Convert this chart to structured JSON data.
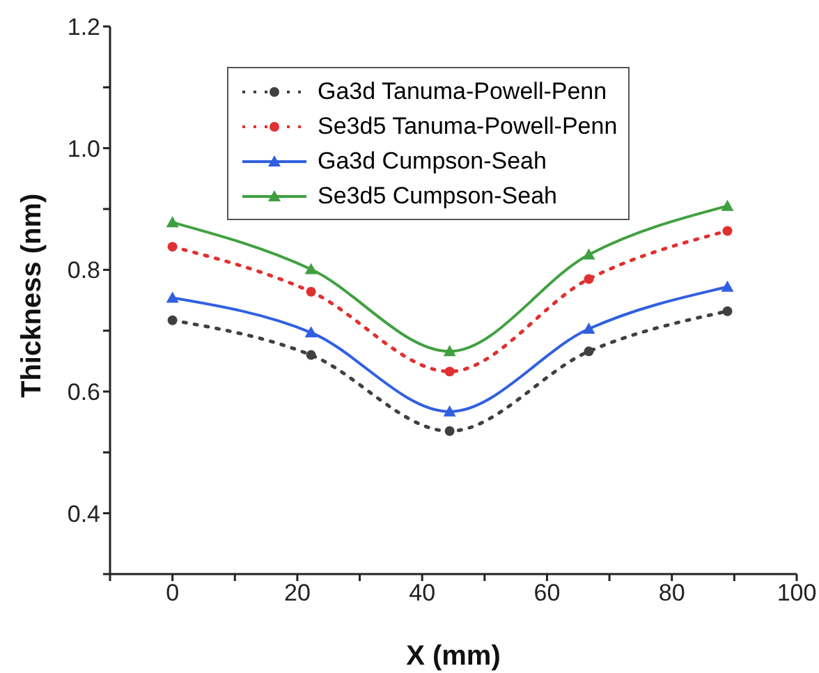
{
  "chart_data": {
    "type": "line",
    "xlabel": "X (mm)",
    "ylabel": "Thickness (nm)",
    "xlim": [
      -10,
      100
    ],
    "xticks": [
      {
        "value": -10,
        "label": null
      },
      0,
      {
        "value": 10,
        "label": null
      },
      20,
      {
        "value": 30,
        "label": null
      },
      40,
      {
        "value": 50,
        "label": null
      },
      60,
      {
        "value": 70,
        "label": null
      },
      80,
      {
        "value": 90,
        "label": null
      },
      100
    ],
    "ylim": [
      0.3,
      1.2
    ],
    "yticks": [
      {
        "value": 0.3,
        "label": null
      },
      {
        "value": 0.4,
        "label": "0.4"
      },
      {
        "value": 0.5,
        "label": null
      },
      {
        "value": 0.6,
        "label": "0.6"
      },
      {
        "value": 0.7,
        "label": null
      },
      {
        "value": 0.8,
        "label": "0.8"
      },
      {
        "value": 0.9,
        "label": null
      },
      {
        "value": 1.0,
        "label": "1.0"
      },
      {
        "value": 1.1,
        "label": null
      },
      {
        "value": 1.2,
        "label": "1.2"
      }
    ],
    "x": [
      0,
      22.2,
      44.4,
      66.7,
      88.9
    ],
    "series": [
      {
        "name": "Ga3d Tanuma-Powell-Penn",
        "color": "#404040",
        "line_style": "dotted",
        "marker": "circle",
        "values": [
          0.717,
          0.66,
          0.535,
          0.666,
          0.732
        ]
      },
      {
        "name": "Se3d5 Tanuma-Powell-Penn",
        "color": "#e03030",
        "line_style": "dotted",
        "marker": "circle",
        "values": [
          0.838,
          0.764,
          0.633,
          0.785,
          0.864
        ]
      },
      {
        "name": "Ga3d Cumpson-Seah",
        "color": "#3060e0",
        "line_style": "solid",
        "marker": "triangle",
        "values": [
          0.754,
          0.697,
          0.567,
          0.703,
          0.772
        ]
      },
      {
        "name": "Se3d5 Cumpson-Seah",
        "color": "#40a040",
        "line_style": "solid",
        "marker": "triangle",
        "values": [
          0.878,
          0.801,
          0.666,
          0.825,
          0.905
        ]
      }
    ],
    "legend": "top",
    "grid": false
  }
}
